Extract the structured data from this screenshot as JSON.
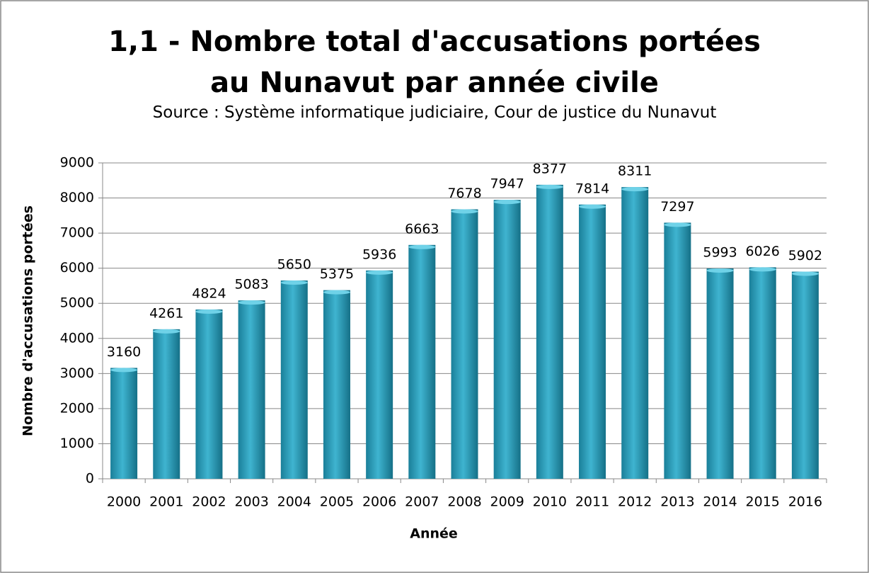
{
  "chart_data": {
    "type": "bar",
    "title": "1,1 - Nombre total d'accusations portées au Nunavut par année civile",
    "subtitle": "Source : Système informatique judiciaire, Cour de justice du Nunavut",
    "x_label": "Année",
    "y_label": "Nombre d'accusations portées",
    "categories": [
      "2000",
      "2001",
      "2002",
      "2003",
      "2004",
      "2005",
      "2006",
      "2007",
      "2008",
      "2009",
      "2010",
      "2011",
      "2012",
      "2013",
      "2014",
      "2015",
      "2016"
    ],
    "values": [
      3160,
      4261,
      4824,
      5083,
      5650,
      5375,
      5936,
      6663,
      7678,
      7947,
      8377,
      7814,
      8311,
      7297,
      5993,
      6026,
      5902
    ],
    "color": "#2a9bb8",
    "ylim": [
      0,
      9000
    ],
    "yticks": [
      0,
      1000,
      2000,
      3000,
      4000,
      5000,
      6000,
      7000,
      8000,
      9000
    ],
    "grid": true
  }
}
